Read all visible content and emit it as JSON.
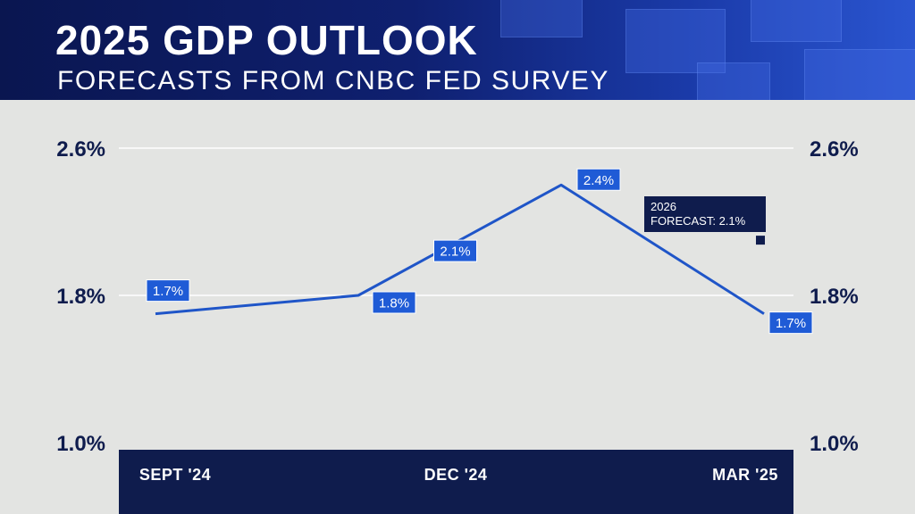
{
  "header": {
    "title": "2025 GDP OUTLOOK",
    "subtitle": "FORECASTS FROM CNBC FED SURVEY"
  },
  "colors": {
    "line": "#1f55c8",
    "label_bg": "#1f5bd6",
    "navy": "#0f1c4d",
    "background": "#e3e4e2",
    "grid": "#ffffff"
  },
  "chart_data": {
    "type": "line",
    "title": "2025 GDP OUTLOOK",
    "subtitle": "FORECASTS FROM CNBC FED SURVEY",
    "y_ticks": [
      "2.6%",
      "1.8%",
      "1.0%"
    ],
    "ylim": [
      1.0,
      2.6
    ],
    "grid": true,
    "x_tick_labels": [
      "SEPT '24",
      "DEC '24",
      "MAR '25"
    ],
    "series": [
      {
        "points": [
          {
            "x": 0,
            "y": 1.7,
            "label": "1.7%"
          },
          {
            "x": 1,
            "y": 1.8,
            "label": "1.8%"
          },
          {
            "x": 1.5,
            "y": 2.1,
            "label": "2.1%"
          },
          {
            "x": 2,
            "y": 2.4,
            "label": "2.4%"
          },
          {
            "x": 3,
            "y": 1.7,
            "label": "1.7%"
          }
        ]
      }
    ],
    "annotation": {
      "lines": [
        "2026",
        "FORECAST: 2.1%"
      ],
      "value": 2.1
    }
  }
}
